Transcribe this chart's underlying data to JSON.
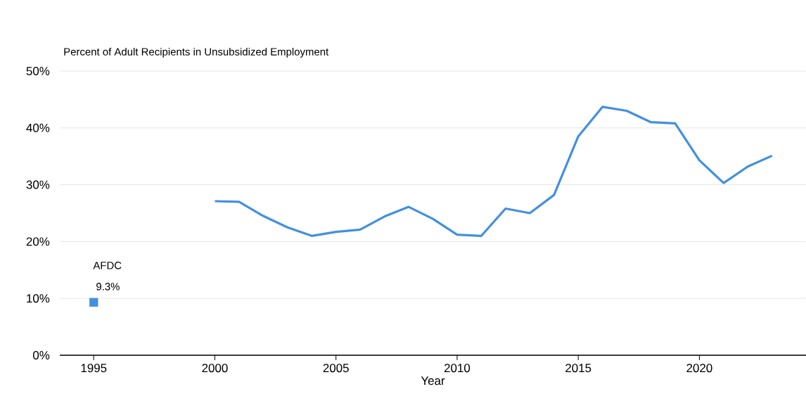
{
  "chart_data": {
    "type": "line",
    "title": "Percent of Adult Recipients in Unsubsidized Employment",
    "xlabel": "Year",
    "series": [
      {
        "color": "#4290df",
        "marker": "none",
        "x": [
          2000,
          2001,
          2002,
          2003,
          2004,
          2005,
          2006,
          2007,
          2008,
          2009,
          2010,
          2011,
          2012,
          2013,
          2014,
          2015,
          2016,
          2017,
          2018,
          2019,
          2020,
          2021,
          2022,
          2023
        ],
        "values": [
          27.1,
          27.0,
          24.5,
          22.5,
          21.0,
          21.7,
          22.1,
          24.4,
          26.1,
          24.0,
          21.2,
          21.0,
          25.8,
          25.0,
          28.2,
          38.5,
          43.7,
          43.0,
          41.0,
          40.8,
          34.3,
          30.3,
          33.2,
          35.1
        ]
      },
      {
        "type": "scatter",
        "name": "AFDC",
        "color": "#4290df",
        "marker": "square",
        "x": [
          1995
        ],
        "values": [
          9.3
        ],
        "value_labels": [
          "9.3%"
        ]
      }
    ],
    "xlim": [
      1993.6,
      2024.4
    ],
    "xticks": [
      1995,
      2000,
      2005,
      2010,
      2015,
      2020
    ],
    "ylim": [
      0,
      50
    ],
    "yticks": [
      {
        "value": 0,
        "label": "0%"
      },
      {
        "value": 10,
        "label": "10%"
      },
      {
        "value": 20,
        "label": "20%"
      },
      {
        "value": 30,
        "label": "30%"
      },
      {
        "value": 40,
        "label": "40%"
      },
      {
        "value": 50,
        "label": "50%"
      }
    ],
    "grid": "y",
    "line_style": "solid"
  }
}
